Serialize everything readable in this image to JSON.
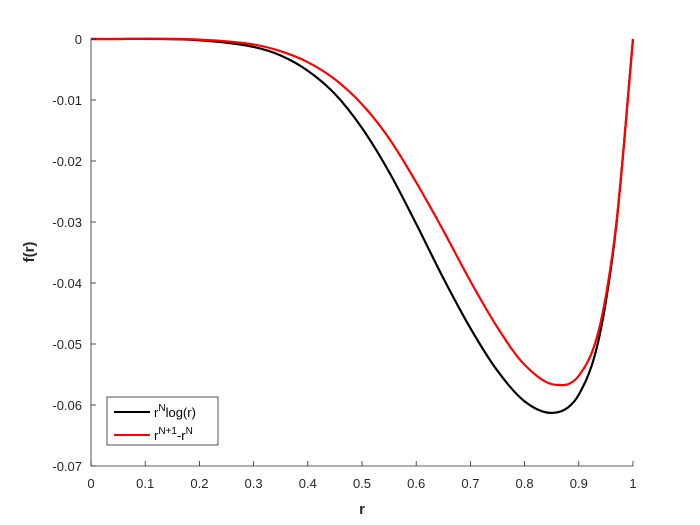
{
  "chart_data": {
    "type": "line",
    "xlabel": "r",
    "ylabel": "f(r)",
    "xlim": [
      0,
      1
    ],
    "ylim": [
      -0.07,
      0
    ],
    "xticks": [
      "0",
      "0.1",
      "0.2",
      "0.3",
      "0.4",
      "0.5",
      "0.6",
      "0.7",
      "0.8",
      "0.9",
      "1"
    ],
    "yticks": [
      "0",
      "-0.01",
      "-0.02",
      "-0.03",
      "-0.04",
      "-0.05",
      "-0.06",
      "-0.07"
    ],
    "grid": false,
    "legend_position": "bottom-left",
    "series": [
      {
        "name": "r^N log(r)",
        "legend": {
          "base": "r",
          "sup": "N",
          "rest": "log(r)"
        },
        "color": "#000000",
        "x": [
          0,
          0.2,
          0.3,
          0.35,
          0.4,
          0.45,
          0.5,
          0.55,
          0.6,
          0.65,
          0.7,
          0.75,
          0.8,
          0.85,
          0.88,
          0.9,
          0.93,
          0.95,
          0.97,
          1.0
        ],
        "y": [
          0,
          -0.0002,
          -0.0013,
          -0.0027,
          -0.0052,
          -0.009,
          -0.0146,
          -0.0218,
          -0.0303,
          -0.0392,
          -0.0474,
          -0.0544,
          -0.0594,
          -0.0613,
          -0.0604,
          -0.0583,
          -0.0517,
          -0.043,
          -0.0299,
          0
        ]
      },
      {
        "name": "r^(N+1) - r^N",
        "legend": {
          "base": "r",
          "sup": "N+1",
          "mid": "-r",
          "sup2": "N"
        },
        "color": "#ff0000",
        "x": [
          0,
          0.2,
          0.3,
          0.35,
          0.4,
          0.45,
          0.5,
          0.55,
          0.6,
          0.65,
          0.7,
          0.75,
          0.8,
          0.86,
          0.88,
          0.9,
          0.93,
          0.95,
          0.97,
          1.0
        ],
        "y": [
          0,
          -0.0001,
          -0.0009,
          -0.002,
          -0.0038,
          -0.0066,
          -0.0107,
          -0.0163,
          -0.0235,
          -0.0314,
          -0.0397,
          -0.0473,
          -0.0534,
          -0.0567,
          -0.0566,
          -0.0552,
          -0.0499,
          -0.0421,
          -0.0296,
          0
        ]
      }
    ]
  }
}
